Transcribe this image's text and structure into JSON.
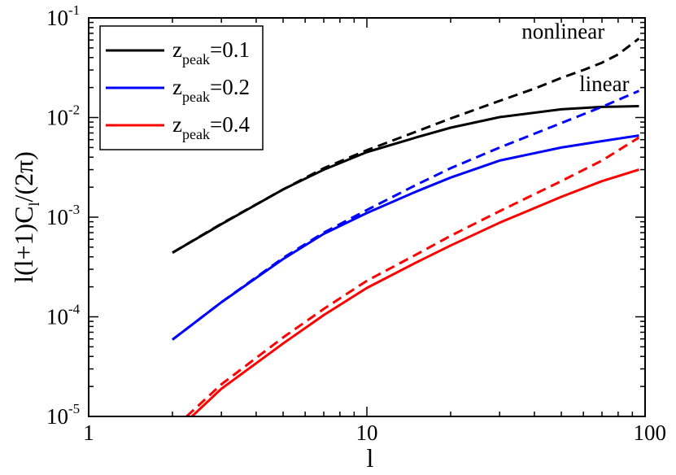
{
  "chart_data": {
    "type": "line",
    "title": "",
    "xlabel": "l",
    "ylabel": "l(l+1)C_l/(2π)",
    "xscale": "log",
    "yscale": "log",
    "xlim": [
      1,
      100
    ],
    "ylim": [
      1e-05,
      0.1
    ],
    "x_ticks": [
      {
        "value": 1,
        "label": "1"
      },
      {
        "value": 10,
        "label": "10"
      },
      {
        "value": 100,
        "label": "100"
      }
    ],
    "y_ticks": [
      {
        "value": 1e-05,
        "base": "10",
        "exp": "-5"
      },
      {
        "value": 0.0001,
        "base": "10",
        "exp": "-4"
      },
      {
        "value": 0.001,
        "base": "10",
        "exp": "-3"
      },
      {
        "value": 0.01,
        "base": "10",
        "exp": "-2"
      },
      {
        "value": 0.1,
        "base": "10",
        "exp": "-1"
      }
    ],
    "legend": {
      "position": "top-left",
      "entries": [
        {
          "prefix": "z",
          "sub": "peak",
          "suffix": "=0.1",
          "color": "#000000"
        },
        {
          "prefix": "z",
          "sub": "peak",
          "suffix": "=0.2",
          "color": "#0000ff"
        },
        {
          "prefix": "z",
          "sub": "peak",
          "suffix": "=0.4",
          "color": "#ff0000"
        }
      ]
    },
    "annotations": [
      {
        "text": "nonlinear",
        "x": 36,
        "y": 0.062
      },
      {
        "text": "linear",
        "x": 58,
        "y": 0.0185
      }
    ],
    "series": [
      {
        "name": "z_peak=0.1 linear",
        "color": "#000000",
        "style": "solid",
        "x": [
          2,
          3,
          5,
          7,
          10,
          15,
          20,
          30,
          50,
          70,
          95
        ],
        "y": [
          0.00044,
          0.00085,
          0.0019,
          0.003,
          0.0045,
          0.0063,
          0.0079,
          0.0101,
          0.0121,
          0.0128,
          0.013
        ]
      },
      {
        "name": "z_peak=0.1 nonlinear",
        "color": "#000000",
        "style": "dashed",
        "x": [
          2,
          3,
          5,
          7,
          10,
          15,
          20,
          30,
          40,
          50,
          60,
          70,
          80,
          95
        ],
        "y": [
          0.00044,
          0.00086,
          0.0019,
          0.0031,
          0.0047,
          0.0072,
          0.0098,
          0.0147,
          0.0195,
          0.025,
          0.03,
          0.0355,
          0.043,
          0.062
        ]
      },
      {
        "name": "z_peak=0.2 linear",
        "color": "#0000ff",
        "style": "solid",
        "x": [
          2,
          3,
          5,
          7,
          10,
          15,
          20,
          30,
          50,
          70,
          95
        ],
        "y": [
          5.9e-05,
          0.00014,
          0.00038,
          0.00068,
          0.0011,
          0.0018,
          0.0025,
          0.0037,
          0.005,
          0.0058,
          0.0066
        ]
      },
      {
        "name": "z_peak=0.2 nonlinear",
        "color": "#0000ff",
        "style": "dashed",
        "x": [
          2,
          3,
          5,
          7,
          10,
          15,
          20,
          30,
          50,
          70,
          95
        ],
        "y": [
          5.9e-05,
          0.00014,
          0.00039,
          0.0007,
          0.00118,
          0.0021,
          0.0031,
          0.005,
          0.0088,
          0.0128,
          0.0185
        ]
      },
      {
        "name": "z_peak=0.4 linear",
        "color": "#ff0000",
        "style": "solid",
        "x": [
          2.35,
          3,
          5,
          7,
          10,
          15,
          20,
          30,
          50,
          70,
          95
        ],
        "y": [
          1e-05,
          1.9e-05,
          5.4e-05,
          0.000104,
          0.000195,
          0.00035,
          0.00052,
          0.00088,
          0.0016,
          0.0023,
          0.003
        ]
      },
      {
        "name": "z_peak=0.4 nonlinear",
        "color": "#ff0000",
        "style": "dashed",
        "x": [
          2.25,
          3,
          5,
          7,
          10,
          15,
          20,
          30,
          50,
          70,
          95
        ],
        "y": [
          1e-05,
          2.1e-05,
          6.2e-05,
          0.00012,
          0.00023,
          0.00042,
          0.00065,
          0.00115,
          0.0023,
          0.0037,
          0.0063
        ]
      }
    ]
  }
}
